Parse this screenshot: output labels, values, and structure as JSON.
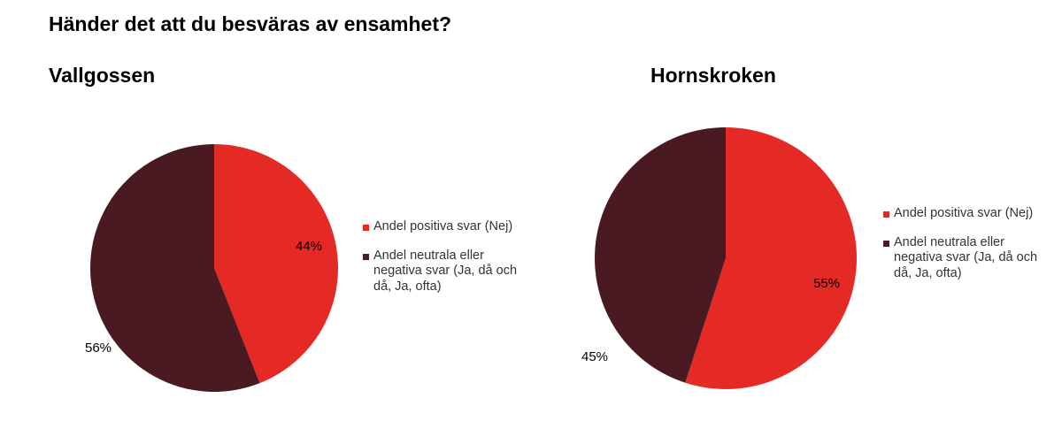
{
  "title": "Händer det att du besväras av ensamhet?",
  "colors": {
    "positive": "#e52a25",
    "negative": "#4a1a22"
  },
  "chart_data": [
    {
      "type": "pie",
      "title": "Vallgossen",
      "series": [
        {
          "label": "Andel positiva svar (Nej)",
          "value": 44,
          "display": "44%"
        },
        {
          "label": "Andel neutrala eller negativa svar (Ja, då och då, Ja, ofta)",
          "value": 56,
          "display": "56%"
        }
      ],
      "legend_position": "right"
    },
    {
      "type": "pie",
      "title": "Hornskroken",
      "series": [
        {
          "label": "Andel positiva svar (Nej)",
          "value": 55,
          "display": "55%"
        },
        {
          "label": "Andel neutrala eller negativa svar (Ja, då och då, Ja, ofta)",
          "value": 45,
          "display": "45%"
        }
      ],
      "legend_position": "right"
    }
  ]
}
